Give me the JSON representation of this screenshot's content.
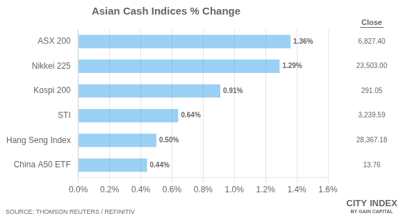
{
  "chart_data": {
    "type": "bar",
    "orientation": "horizontal",
    "title": "Asian Cash Indices % Change",
    "categories": [
      "China A50 ETF",
      "Hang Seng Index",
      "STI",
      "Kospi 200",
      "Nikkei 225",
      "ASX 200"
    ],
    "values": [
      0.44,
      0.5,
      0.64,
      0.91,
      1.29,
      1.36
    ],
    "value_labels": [
      "0.44%",
      "0.50%",
      "0.64%",
      "0.91%",
      "1.29%",
      "1.36%"
    ],
    "data_labels": true,
    "xlim": [
      0.0,
      1.6
    ],
    "xticks": [
      {
        "value": 0.0,
        "label": "0.0%"
      },
      {
        "value": 0.2,
        "label": "0.2%"
      },
      {
        "value": 0.4,
        "label": "0.4%"
      },
      {
        "value": 0.6,
        "label": "0.6%"
      },
      {
        "value": 0.8,
        "label": "0.8%"
      },
      {
        "value": 1.0,
        "label": "1.0%"
      },
      {
        "value": 1.2,
        "label": "1.2%"
      },
      {
        "value": 1.4,
        "label": "1.4%"
      },
      {
        "value": 1.6,
        "label": "1.6%"
      }
    ],
    "grid": true,
    "close": {
      "title": "Close",
      "labels": [
        "13.76",
        "28,367.18",
        "3,239.59",
        "291.05",
        "23,503.00",
        "6,827.40"
      ]
    },
    "annotations": [
      "SOURCE: THOMSON REUTERS / REFINITIV",
      "CITY",
      "INDEX",
      "BY GAIN CAPITAL"
    ]
  }
}
